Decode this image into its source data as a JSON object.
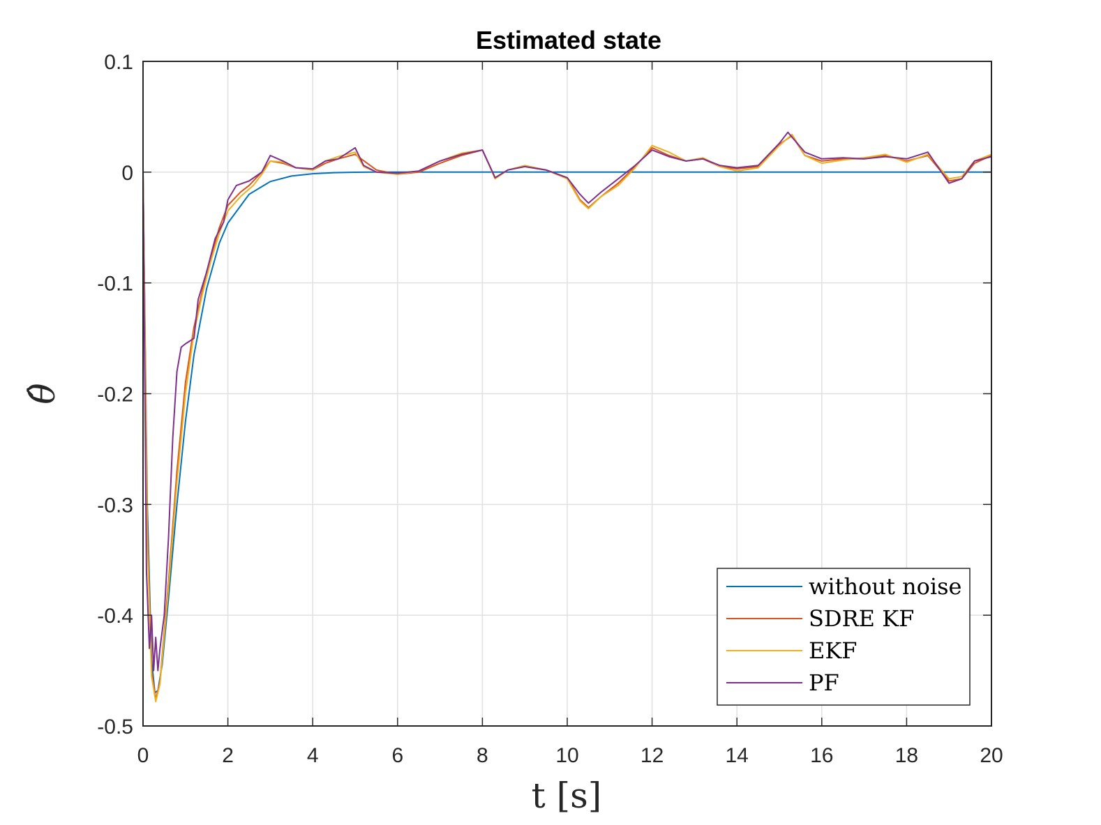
{
  "chart_data": {
    "type": "line",
    "title": "Estimated state",
    "xlabel": "t [s]",
    "ylabel": "θ̂",
    "xlim": [
      0,
      20
    ],
    "ylim": [
      -0.5,
      0.1
    ],
    "xticks": [
      0,
      2,
      4,
      6,
      8,
      10,
      12,
      14,
      16,
      18,
      20
    ],
    "yticks": [
      -0.5,
      -0.4,
      -0.3,
      -0.2,
      -0.1,
      0,
      0.1
    ],
    "ytick_labels": [
      "-0.5",
      "-0.4",
      "-0.3",
      "-0.2",
      "-0.1",
      "0",
      "0.1"
    ],
    "grid": true,
    "legend_position": "bottom-right",
    "series": [
      {
        "name": "without noise",
        "color": "#0072BD",
        "points": [
          [
            0,
            0
          ],
          [
            0.1,
            -0.3
          ],
          [
            0.2,
            -0.44
          ],
          [
            0.28,
            -0.47
          ],
          [
            0.35,
            -0.468
          ],
          [
            0.45,
            -0.445
          ],
          [
            0.6,
            -0.385
          ],
          [
            0.8,
            -0.3
          ],
          [
            1.0,
            -0.225
          ],
          [
            1.2,
            -0.165
          ],
          [
            1.5,
            -0.105
          ],
          [
            1.8,
            -0.064
          ],
          [
            2.0,
            -0.046
          ],
          [
            2.5,
            -0.02
          ],
          [
            3.0,
            -0.0085
          ],
          [
            3.5,
            -0.0035
          ],
          [
            4.0,
            -0.0014
          ],
          [
            4.5,
            -0.0005
          ],
          [
            5.0,
            -0.0001
          ],
          [
            5.5,
            0
          ],
          [
            20,
            0
          ]
        ]
      },
      {
        "name": "SDRE KF",
        "color": "#D95319",
        "points": [
          [
            0,
            0
          ],
          [
            0.1,
            -0.32
          ],
          [
            0.2,
            -0.45
          ],
          [
            0.3,
            -0.476
          ],
          [
            0.4,
            -0.46
          ],
          [
            0.6,
            -0.37
          ],
          [
            0.8,
            -0.27
          ],
          [
            1.0,
            -0.19
          ],
          [
            1.2,
            -0.14
          ],
          [
            1.5,
            -0.09
          ],
          [
            1.8,
            -0.05
          ],
          [
            2.0,
            -0.03
          ],
          [
            2.3,
            -0.018
          ],
          [
            2.5,
            -0.012
          ],
          [
            2.8,
            0
          ],
          [
            3.0,
            0.01
          ],
          [
            3.3,
            0.008
          ],
          [
            3.6,
            0.004
          ],
          [
            4.0,
            0.002
          ],
          [
            4.3,
            0.008
          ],
          [
            4.6,
            0.012
          ],
          [
            5.0,
            0.016
          ],
          [
            5.5,
            0.002
          ],
          [
            6.0,
            -0.002
          ],
          [
            6.5,
            0
          ],
          [
            7.0,
            0.008
          ],
          [
            7.5,
            0.015
          ],
          [
            8.0,
            0.02
          ],
          [
            8.3,
            -0.005
          ],
          [
            8.6,
            0.002
          ],
          [
            9.0,
            0.005
          ],
          [
            9.5,
            0.002
          ],
          [
            10.0,
            -0.005
          ],
          [
            10.3,
            -0.025
          ],
          [
            10.5,
            -0.032
          ],
          [
            10.8,
            -0.022
          ],
          [
            11.2,
            -0.01
          ],
          [
            11.6,
            0.005
          ],
          [
            12.0,
            0.022
          ],
          [
            12.4,
            0.015
          ],
          [
            12.8,
            0.01
          ],
          [
            13.2,
            0.012
          ],
          [
            13.6,
            0.005
          ],
          [
            14.0,
            0.003
          ],
          [
            14.5,
            0.005
          ],
          [
            15.0,
            0.025
          ],
          [
            15.3,
            0.033
          ],
          [
            15.6,
            0.015
          ],
          [
            16.0,
            0.01
          ],
          [
            16.5,
            0.012
          ],
          [
            17.0,
            0.012
          ],
          [
            17.5,
            0.015
          ],
          [
            18.0,
            0.01
          ],
          [
            18.5,
            0.015
          ],
          [
            19.0,
            -0.008
          ],
          [
            19.3,
            -0.006
          ],
          [
            19.6,
            0.008
          ],
          [
            20,
            0.015
          ]
        ]
      },
      {
        "name": "EKF",
        "color": "#EDB120",
        "points": [
          [
            0,
            0
          ],
          [
            0.1,
            -0.33
          ],
          [
            0.2,
            -0.455
          ],
          [
            0.3,
            -0.478
          ],
          [
            0.4,
            -0.462
          ],
          [
            0.6,
            -0.375
          ],
          [
            0.8,
            -0.28
          ],
          [
            1.0,
            -0.2
          ],
          [
            1.2,
            -0.145
          ],
          [
            1.4,
            -0.11
          ],
          [
            1.6,
            -0.08
          ],
          [
            1.8,
            -0.055
          ],
          [
            2.0,
            -0.035
          ],
          [
            2.3,
            -0.022
          ],
          [
            2.6,
            -0.012
          ],
          [
            2.8,
            -0.002
          ],
          [
            3.0,
            0.01
          ],
          [
            3.3,
            0.009
          ],
          [
            3.6,
            0.004
          ],
          [
            4.0,
            0.002
          ],
          [
            4.3,
            0.01
          ],
          [
            4.6,
            0.014
          ],
          [
            5.0,
            0.018
          ],
          [
            5.2,
            0.005
          ],
          [
            5.5,
            0
          ],
          [
            6.0,
            -0.002
          ],
          [
            6.5,
            0.001
          ],
          [
            7.0,
            0.01
          ],
          [
            7.5,
            0.017
          ],
          [
            8.0,
            0.02
          ],
          [
            8.3,
            -0.006
          ],
          [
            8.6,
            0.002
          ],
          [
            9.0,
            0.006
          ],
          [
            9.5,
            0.002
          ],
          [
            10.0,
            -0.006
          ],
          [
            10.3,
            -0.026
          ],
          [
            10.5,
            -0.033
          ],
          [
            10.8,
            -0.022
          ],
          [
            11.2,
            -0.012
          ],
          [
            11.6,
            0.004
          ],
          [
            12.0,
            0.024
          ],
          [
            12.4,
            0.018
          ],
          [
            12.8,
            0.01
          ],
          [
            13.2,
            0.013
          ],
          [
            13.6,
            0.005
          ],
          [
            14.0,
            0.001
          ],
          [
            14.5,
            0.004
          ],
          [
            15.0,
            0.024
          ],
          [
            15.3,
            0.034
          ],
          [
            15.6,
            0.015
          ],
          [
            16.0,
            0.008
          ],
          [
            16.5,
            0.011
          ],
          [
            17.0,
            0.013
          ],
          [
            17.5,
            0.016
          ],
          [
            18.0,
            0.009
          ],
          [
            18.5,
            0.016
          ],
          [
            19.0,
            -0.006
          ],
          [
            19.3,
            -0.004
          ],
          [
            19.6,
            0.01
          ],
          [
            20,
            0.016
          ]
        ]
      },
      {
        "name": "PF",
        "color": "#7E2F8E",
        "points": [
          [
            0,
            0
          ],
          [
            0.08,
            -0.36
          ],
          [
            0.15,
            -0.43
          ],
          [
            0.2,
            -0.4
          ],
          [
            0.25,
            -0.45
          ],
          [
            0.3,
            -0.42
          ],
          [
            0.35,
            -0.45
          ],
          [
            0.4,
            -0.43
          ],
          [
            0.5,
            -0.4
          ],
          [
            0.6,
            -0.33
          ],
          [
            0.7,
            -0.24
          ],
          [
            0.8,
            -0.18
          ],
          [
            0.9,
            -0.158
          ],
          [
            1.0,
            -0.155
          ],
          [
            1.2,
            -0.15
          ],
          [
            1.3,
            -0.115
          ],
          [
            1.5,
            -0.09
          ],
          [
            1.7,
            -0.06
          ],
          [
            1.9,
            -0.045
          ],
          [
            2.0,
            -0.025
          ],
          [
            2.2,
            -0.012
          ],
          [
            2.5,
            -0.008
          ],
          [
            2.8,
            0
          ],
          [
            3.0,
            0.015
          ],
          [
            3.3,
            0.01
          ],
          [
            3.6,
            0.004
          ],
          [
            4.0,
            0.003
          ],
          [
            4.3,
            0.01
          ],
          [
            4.6,
            0.012
          ],
          [
            5.0,
            0.022
          ],
          [
            5.2,
            0.006
          ],
          [
            5.5,
            0
          ],
          [
            6.0,
            -0.001
          ],
          [
            6.5,
            0.001
          ],
          [
            7.0,
            0.01
          ],
          [
            7.5,
            0.016
          ],
          [
            8.0,
            0.02
          ],
          [
            8.3,
            -0.005
          ],
          [
            8.6,
            0.002
          ],
          [
            9.0,
            0.005
          ],
          [
            9.5,
            0.002
          ],
          [
            10.0,
            -0.005
          ],
          [
            10.3,
            -0.02
          ],
          [
            10.5,
            -0.028
          ],
          [
            10.8,
            -0.018
          ],
          [
            11.2,
            -0.006
          ],
          [
            11.6,
            0.006
          ],
          [
            12.0,
            0.02
          ],
          [
            12.4,
            0.014
          ],
          [
            12.8,
            0.01
          ],
          [
            13.2,
            0.012
          ],
          [
            13.6,
            0.006
          ],
          [
            14.0,
            0.004
          ],
          [
            14.5,
            0.006
          ],
          [
            15.0,
            0.026
          ],
          [
            15.2,
            0.036
          ],
          [
            15.6,
            0.018
          ],
          [
            16.0,
            0.012
          ],
          [
            16.5,
            0.013
          ],
          [
            17.0,
            0.012
          ],
          [
            17.5,
            0.014
          ],
          [
            18.0,
            0.012
          ],
          [
            18.5,
            0.018
          ],
          [
            19.0,
            -0.01
          ],
          [
            19.3,
            -0.006
          ],
          [
            19.6,
            0.01
          ],
          [
            20,
            0.014
          ]
        ]
      }
    ]
  }
}
